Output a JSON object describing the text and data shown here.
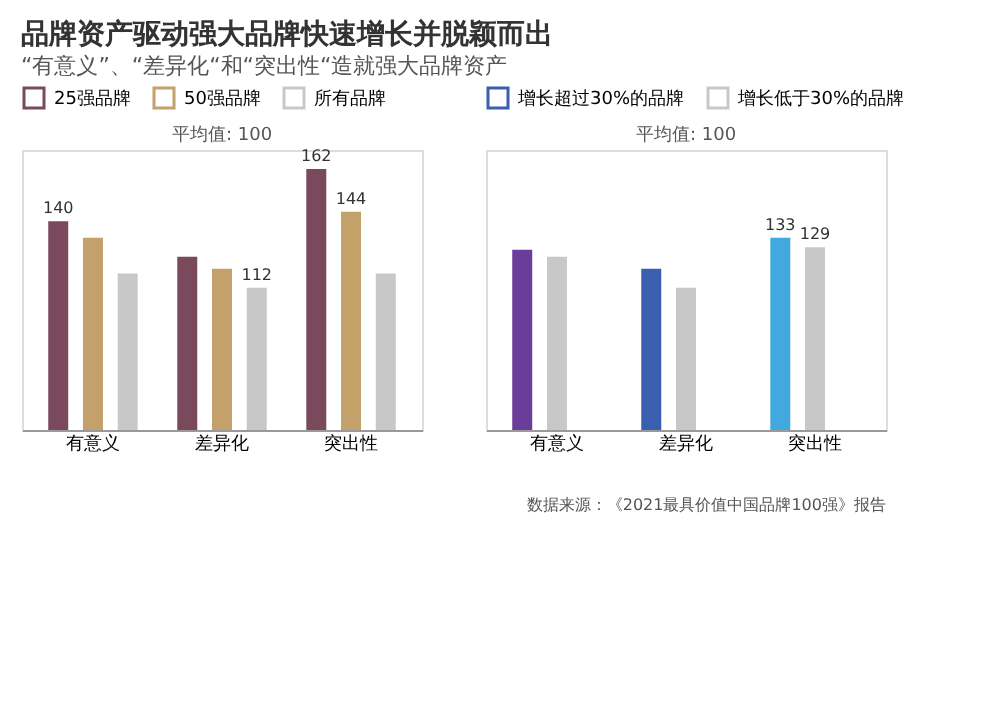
{
  "chart_data": [
    {
      "type": "bar",
      "title": "品牌资产驱动强大品牌快速增长并脱颖而出",
      "subtitle": "“有意义”、“差异化“和“突出性“造就强大品牌资产",
      "categories": [
        "有意义",
        "差异化",
        "突出性"
      ],
      "ylim": [
        52,
        170
      ],
      "legend": "top",
      "annotations": [
        "平均值: 100"
      ],
      "series": [
        {
          "name": "25强品牌",
          "color": "#7a4a5c",
          "values": [
            140,
            125,
            162
          ],
          "value_labels": [
            "140",
            null,
            "162"
          ]
        },
        {
          "name": "50强品牌",
          "color": "#c4a06a",
          "values": [
            133,
            120,
            144
          ],
          "value_labels": [
            null,
            null,
            "144"
          ]
        },
        {
          "name": "所有品牌",
          "color": "#c8c8c8",
          "values": [
            118,
            112,
            118
          ],
          "value_labels": [
            null,
            "112",
            null
          ]
        }
      ]
    },
    {
      "type": "bar",
      "categories": [
        "有意义",
        "差异化",
        "突出性"
      ],
      "ylim": [
        52,
        170
      ],
      "legend": "top",
      "annotations": [
        "平均值: 100",
        "数据来源：《2021最具价值中国品牌100强》报告"
      ],
      "series": [
        {
          "name": "增长超过30%的品牌",
          "color": "#3a5fb0",
          "colors": [
            "#6a3d9a",
            "#3a5fb0",
            "#41a9e0"
          ],
          "values": [
            128,
            120,
            133
          ],
          "value_labels": [
            null,
            null,
            "133"
          ]
        },
        {
          "name": "增长低于30%的品牌",
          "color": "#c8c8c8",
          "values": [
            125,
            112,
            129
          ],
          "value_labels": [
            null,
            null,
            "129"
          ]
        }
      ]
    }
  ]
}
